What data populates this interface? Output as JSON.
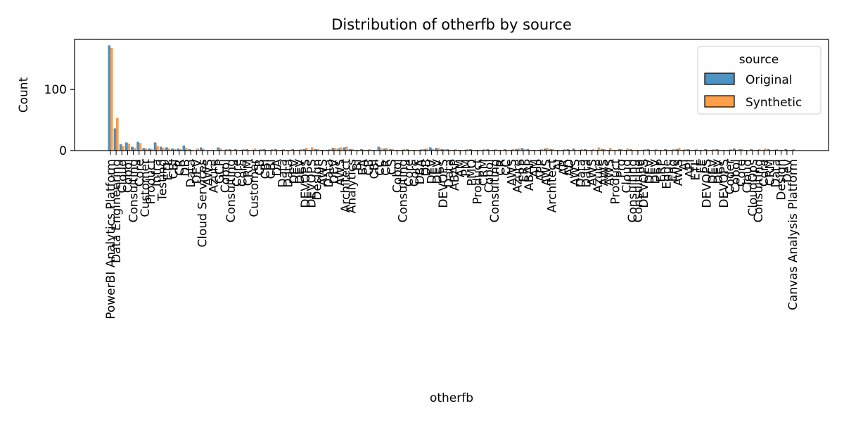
{
  "chart_data": {
    "type": "bar",
    "title": "Distribution of otherfb by source",
    "xlabel": "otherfb",
    "ylabel": "Count",
    "ylim": [
      0,
      182
    ],
    "yticks": [
      0,
      100
    ],
    "grid": false,
    "legend": {
      "title": "source",
      "placement": "top-right",
      "entries": [
        "Original",
        "Synthetic"
      ]
    },
    "colors": {
      "Original": "#4C92C3",
      "Synthetic": "#FF9F4A",
      "Original_edge": "#2E5F86",
      "Synthetic_edge": "#C87028"
    },
    "categories": [
      "PowerBI Analytics Platform",
      "Data Engineering",
      "Cloud",
      "Cobol",
      "Consulting",
      "Core",
      "Customer",
      "Product",
      "Infra",
      "Testing",
      "ETL",
      "CBI",
      "CR",
      "DB",
      "Data",
      "DEV",
      "Cloud Services",
      "AWS",
      "Azure",
      "GCP",
      "Cobol",
      "Consulting",
      "Core",
      "Core",
      "CRM",
      "Customer",
      "CB",
      "CBI",
      "CBI",
      "DA",
      "Data",
      "Data",
      "DEV",
      "DEV",
      "DEVOPS",
      "DEVOPS",
      "Design",
      "AWS",
      "Data",
      "DEV",
      "AWS",
      "Architect",
      "Analytics",
      "BI",
      "BA",
      "CB",
      "CBI",
      "CC",
      "CR",
      "CS",
      "Cobol",
      "Consulting",
      "Core",
      "Core",
      "DBA",
      "DB",
      "DEV",
      "DEV",
      "DEVOPS",
      "Data",
      "ABAP",
      "AM",
      "PM",
      "PMO",
      "Product",
      "CRM",
      "Cobol",
      "Consulting",
      "CR",
      "CC",
      "AWS",
      "Azure",
      "ERP",
      "ABAP",
      "AM",
      "APP",
      "AWS",
      "Architect",
      "AI",
      "AR",
      "AD",
      "AWS",
      "Data",
      "Data",
      "AWS",
      "Azure",
      "AWS",
      "AWS",
      "Product",
      "Pro",
      "Cloud",
      "Consulting",
      "Consulting",
      "DEVOPS",
      "DEV",
      "DEV",
      "ERP",
      "Edge",
      "Eng",
      "AWS",
      "AI",
      "API",
      "ETL",
      "FE",
      "DEVOPS",
      "DEV",
      "DEV",
      "DEVOPS",
      "Coder",
      "Cobol",
      "Core",
      "Cloud",
      "CloudOps",
      "Consulting",
      "Core",
      "CRM",
      "Data",
      "Design",
      "Dev",
      "Canvas Analysis Platform"
    ],
    "series": [
      {
        "name": "Original",
        "values": [
          172,
          36,
          10,
          13,
          6,
          14,
          4,
          3,
          13,
          6,
          5,
          3,
          3,
          8,
          2,
          0,
          5,
          0,
          1,
          5,
          0,
          2,
          2,
          1,
          2,
          1,
          1,
          2,
          1,
          2,
          1,
          1,
          2,
          1,
          2,
          1,
          2,
          1,
          1,
          4,
          3,
          5,
          2,
          1,
          2,
          1,
          1,
          6,
          3,
          2,
          1,
          1,
          2,
          1,
          1,
          2,
          5,
          4,
          2,
          2,
          1,
          1,
          1,
          2,
          1,
          1,
          2,
          1,
          1,
          2,
          1,
          2,
          4,
          2,
          1,
          1,
          3,
          2,
          1,
          1,
          2,
          3,
          1,
          2,
          1,
          1,
          2,
          1,
          1,
          2,
          1,
          2,
          1,
          1,
          2,
          1,
          1,
          2,
          1,
          2,
          1,
          2,
          1,
          1,
          2,
          1,
          2,
          1,
          1,
          3,
          2,
          1,
          2,
          1,
          1,
          2,
          1,
          1,
          2,
          1
        ]
      },
      {
        "name": "Synthetic",
        "values": [
          168,
          53,
          7,
          11,
          4,
          12,
          3,
          2,
          7,
          4,
          3,
          2,
          2,
          4,
          1,
          3,
          2,
          1,
          0,
          3,
          2,
          1,
          1,
          2,
          1,
          3,
          2,
          1,
          2,
          1,
          2,
          1,
          1,
          2,
          4,
          5,
          2,
          1,
          2,
          4,
          5,
          6,
          2,
          1,
          1,
          2,
          1,
          3,
          4,
          2,
          1,
          2,
          1,
          1,
          2,
          3,
          2,
          4,
          2,
          1,
          2,
          1,
          2,
          1,
          1,
          2,
          1,
          2,
          1,
          1,
          2,
          3,
          2,
          1,
          1,
          2,
          4,
          2,
          1,
          2,
          1,
          1,
          2,
          1,
          2,
          5,
          2,
          4,
          1,
          2,
          3,
          1,
          1,
          2,
          1,
          2,
          1,
          1,
          2,
          4,
          2,
          1,
          2,
          1,
          1,
          2,
          1,
          1,
          2,
          1,
          2,
          1,
          1,
          2,
          3,
          1,
          2,
          1,
          1,
          2
        ]
      }
    ]
  }
}
